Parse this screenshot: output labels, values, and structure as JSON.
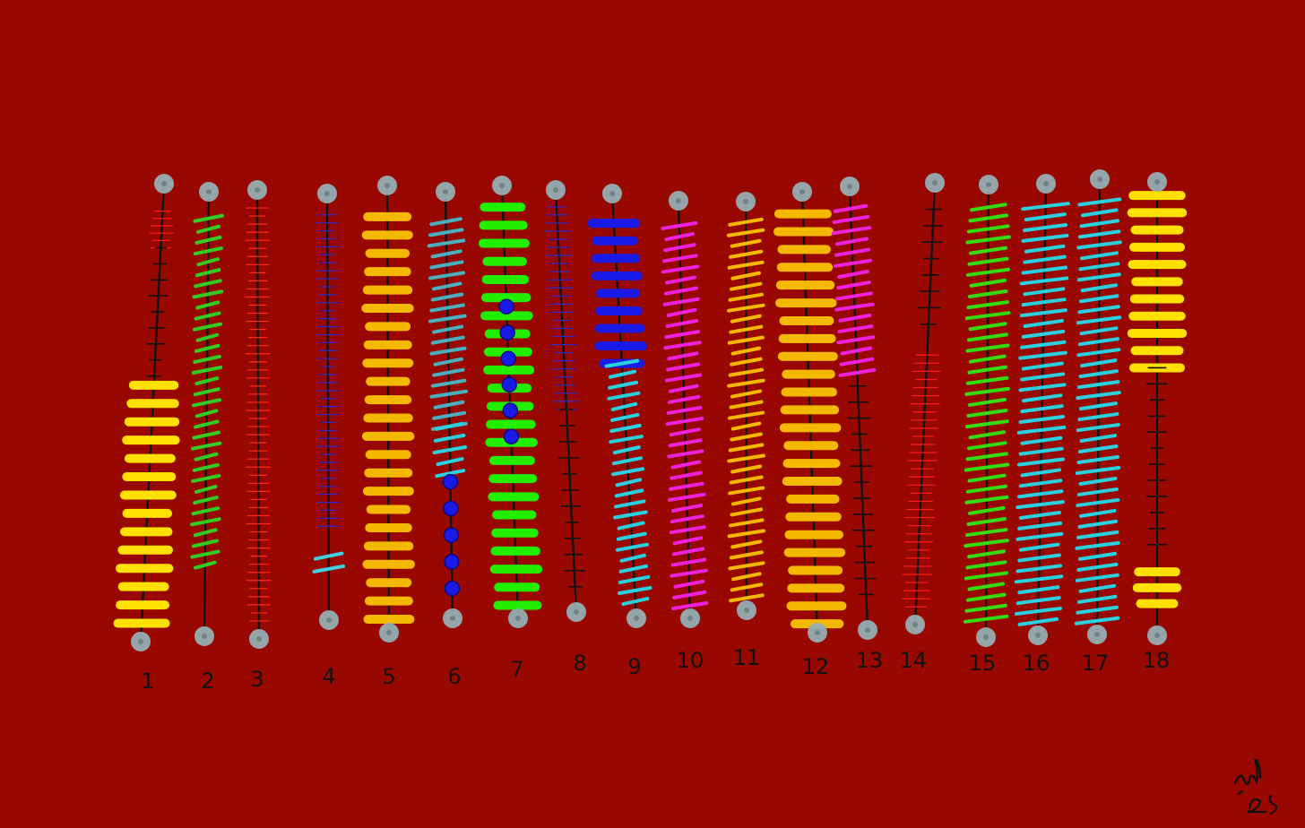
{
  "artwork": {
    "background_color": "#990800",
    "post_color": "#95aeb2",
    "rod_color": "#111111",
    "rods": [
      {
        "label": "1",
        "colors": [
          "#ff1a1a",
          "#111111",
          "#ffe000"
        ]
      },
      {
        "label": "2",
        "colors": [
          "#33cc22"
        ]
      },
      {
        "label": "3",
        "colors": [
          "#ff2a1a"
        ]
      },
      {
        "label": "4",
        "colors": [
          "#2a2acc",
          "#40d0e0"
        ]
      },
      {
        "label": "5",
        "colors": [
          "#f5b800"
        ]
      },
      {
        "label": "6",
        "colors": [
          "#4ab0c0",
          "#2ad0e0",
          "#1a1ae6"
        ]
      },
      {
        "label": "7",
        "colors": [
          "#22ee00",
          "#1a1ae6"
        ]
      },
      {
        "label": "8",
        "colors": [
          "#2a2acc",
          "#111111"
        ]
      },
      {
        "label": "9",
        "colors": [
          "#1a1ae6",
          "#2ad0e0"
        ]
      },
      {
        "label": "10",
        "colors": [
          "#ee22dd"
        ]
      },
      {
        "label": "11",
        "colors": [
          "#f5b800"
        ]
      },
      {
        "label": "12",
        "colors": [
          "#f5b800"
        ]
      },
      {
        "label": "13",
        "colors": [
          "#ee22dd",
          "#111111"
        ]
      },
      {
        "label": "14",
        "colors": [
          "#111111",
          "#ff1a1a"
        ]
      },
      {
        "label": "15",
        "colors": [
          "#33dd11"
        ]
      },
      {
        "label": "16",
        "colors": [
          "#2ad0e0"
        ]
      },
      {
        "label": "17",
        "colors": [
          "#2ad0e0"
        ]
      },
      {
        "label": "18",
        "colors": [
          "#ffe000",
          "#111111"
        ]
      }
    ]
  }
}
